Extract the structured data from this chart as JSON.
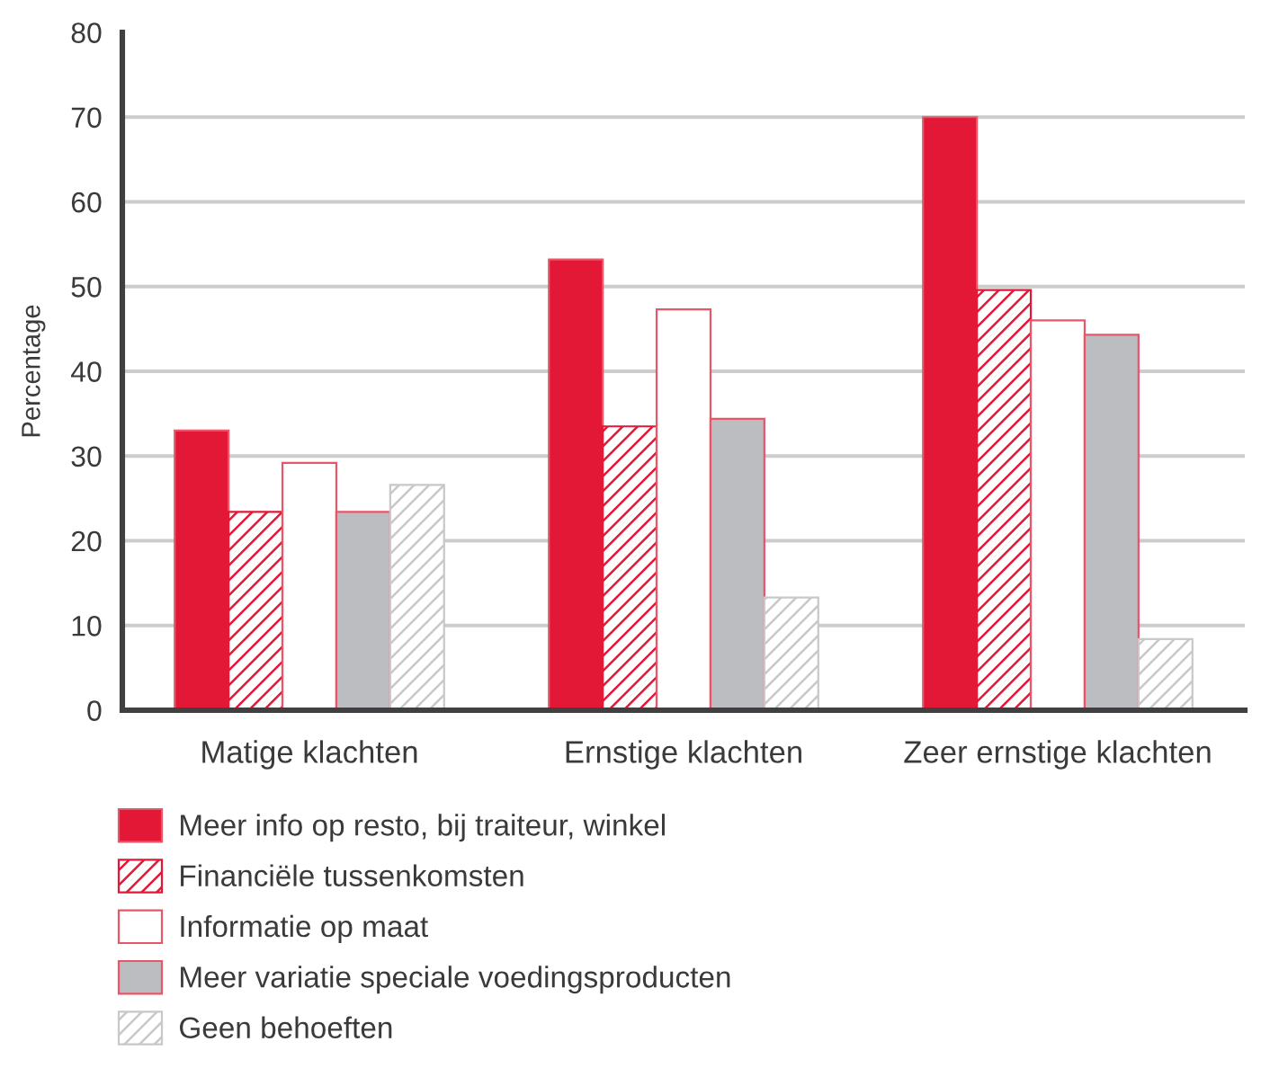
{
  "chart_data": {
    "type": "bar",
    "ylabel": "Percentage",
    "categories": [
      "Matige klachten",
      "Ernstige klachten",
      "Zeer ernstige klachten"
    ],
    "series": [
      {
        "name": "Meer info op resto, bij traiteur, winkel",
        "color": "#e21836",
        "values": [
          33,
          53.2,
          70
        ]
      },
      {
        "name": "Financiële tussenkomsten",
        "color": "#e21836",
        "values": [
          23.4,
          33.5,
          49.6
        ]
      },
      {
        "name": "Informatie op maat",
        "color": "#ffffff",
        "values": [
          29.2,
          47.3,
          46
        ]
      },
      {
        "name": "Meer variatie speciale voedingsproducten",
        "color": "#bcbdc0",
        "values": [
          23.4,
          34.4,
          44.3
        ]
      },
      {
        "name": "Geen behoeften",
        "color": "#c8c8c8",
        "values": [
          26.6,
          13.3,
          8.4
        ]
      }
    ],
    "ylim": [
      0,
      80
    ],
    "yticks": [
      0,
      10,
      20,
      30,
      40,
      50,
      60,
      70,
      80
    ],
    "grid": "y",
    "legend": "bottom"
  }
}
